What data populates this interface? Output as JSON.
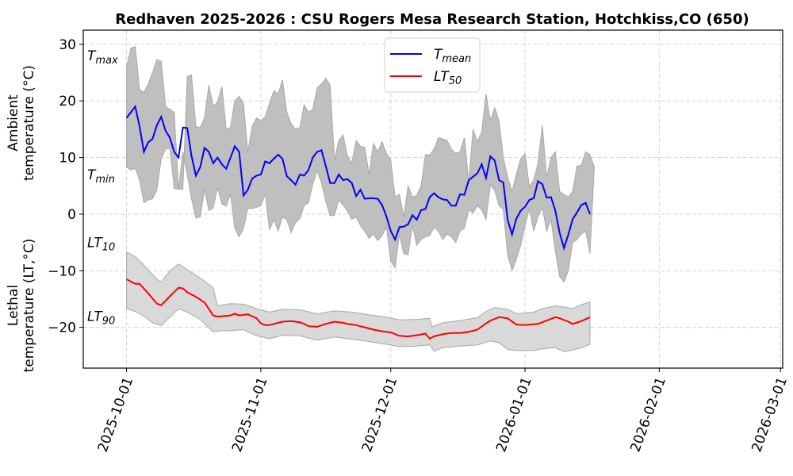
{
  "chart_data": {
    "type": "line",
    "title": "Redhaven 2025-2026 : CSU Rogers Mesa Research Station, Hotchkiss,CO (650)",
    "ylabel_top": [
      "Ambient",
      "temperature (°C)"
    ],
    "ylabel_bottom": [
      "Lethal",
      "temperature (LT,°C)"
    ],
    "xlabel": "",
    "x_unit": "days since 2025-10-01",
    "xlim": [
      -10,
      151.5
    ],
    "ylim": [
      -27.2,
      32.5
    ],
    "grid": true,
    "x_ticks": [
      {
        "day": 0,
        "label": "2025-10-01"
      },
      {
        "day": 31,
        "label": "2025-11-01"
      },
      {
        "day": 61,
        "label": "2025-12-01"
      },
      {
        "day": 92,
        "label": "2026-01-01"
      },
      {
        "day": 123,
        "label": "2026-02-01"
      },
      {
        "day": 151,
        "label": "2026-03-01"
      }
    ],
    "y_ticks": [
      30,
      20,
      10,
      0,
      -10,
      -20
    ],
    "annotations": [
      {
        "label": "T",
        "sub": "max",
        "y": 28
      },
      {
        "label": "T",
        "sub": "min",
        "y": 7
      },
      {
        "label": "LT",
        "sub": "10",
        "y": -5
      },
      {
        "label": "LT",
        "sub": "90",
        "y": -18
      }
    ],
    "legend": {
      "placement": "top-center",
      "entries": [
        {
          "label": "T",
          "sub": "mean",
          "color": "#0000ff"
        },
        {
          "label": "LT",
          "sub": "50",
          "color": "#ff0000"
        }
      ]
    },
    "colors": {
      "tmean": "#0000ff",
      "lt50": "#ff0000",
      "tband": "#bfbfbf",
      "ltband": "#d9d9d9"
    },
    "tmean": [
      17,
      18,
      19,
      15.5,
      11,
      12.7,
      13.3,
      15.7,
      17.2,
      14.7,
      13.5,
      11,
      10,
      15.3,
      15.2,
      10.3,
      6.8,
      8.3,
      11.7,
      11,
      9,
      10,
      8.8,
      8,
      10,
      12,
      11,
      3.3,
      4.3,
      6.3,
      6.8,
      7,
      9.3,
      9,
      9.8,
      10.5,
      9.8,
      6.7,
      6,
      5.2,
      7,
      6.8,
      7.8,
      10,
      11,
      11.3,
      8.5,
      5.5,
      5.5,
      7,
      6,
      6.2,
      5.5,
      3.2,
      4.3,
      2.7,
      2.8,
      2.8,
      2.7,
      1.6,
      -0.4,
      -3,
      -4.5,
      -2.3,
      -2.2,
      -1.8,
      -0.2,
      -1,
      0.7,
      0.9,
      3,
      3.7,
      3,
      2.6,
      2.5,
      1.5,
      1.5,
      3.5,
      3.4,
      6,
      6.6,
      7.2,
      8.8,
      6.4,
      10.2,
      9.5,
      6,
      5.6,
      -1,
      -3.6,
      -0.8,
      0.6,
      1.3,
      2.5,
      2.8,
      5.8,
      5.3,
      2.9,
      3,
      0.6,
      -3.3,
      -6,
      -3.6,
      -0.9,
      0.3,
      1.6,
      2,
      0
    ],
    "tmax": [
      26,
      29.3,
      29.6,
      22,
      21.5,
      23,
      25,
      27.3,
      27,
      19,
      18.5,
      18,
      4.4,
      4.4,
      24.3,
      24.6,
      15.5,
      15.3,
      17,
      22.8,
      19,
      19.8,
      22.5,
      15,
      15.3,
      20,
      20.8,
      19.5,
      11,
      15.5,
      17,
      16.5,
      17.2,
      19.5,
      21.8,
      21.3,
      23.7,
      18,
      16,
      15,
      15.3,
      19.3,
      18,
      18.5,
      22.3,
      23,
      24,
      22.8,
      9.5,
      13,
      14,
      10.3,
      9,
      13,
      12,
      11.8,
      7,
      12.5,
      11,
      12.8,
      10.7,
      9.5,
      3,
      3.5,
      -0.5,
      5,
      3,
      3.3,
      5,
      10.5,
      10.5,
      11.5,
      13.5,
      13.3,
      13,
      11.5,
      10.7,
      11,
      13.5,
      5.5,
      15,
      12.8,
      14.5,
      21.2,
      16.5,
      18.8,
      16.5,
      10,
      6.5,
      4,
      7,
      9.8,
      10.7,
      4.8,
      6,
      9,
      15.7,
      6.5,
      10,
      11,
      4,
      3.5,
      3,
      4,
      8.5,
      8.6,
      11,
      10.5,
      8.3
    ],
    "tmin": [
      8.3,
      7.8,
      8.1,
      6,
      2,
      2.5,
      2.7,
      4.3,
      9.8,
      11.5,
      11.6,
      4.5,
      4.4,
      11,
      7,
      2.7,
      -0.7,
      -0.5,
      4.4,
      0.6,
      1.1,
      4.7,
      1.8,
      1.4,
      3.5,
      -2.5,
      -4,
      -2.5,
      1,
      1,
      1.2,
      1.5,
      3.5,
      -2.7,
      -1,
      -3,
      -0.5,
      -1,
      -3.3,
      -1.5,
      -0.8,
      1.5,
      2,
      5.3,
      7.7,
      5.5,
      2.3,
      -0.3,
      -0.2,
      2.5,
      1.6,
      0.5,
      -0.9,
      -0.5,
      -2,
      -3,
      -4.3,
      -3.5,
      -4.7,
      -3.8,
      -2.3,
      -8.3,
      -9.5,
      -3.5,
      -7,
      -7.2,
      -2,
      -5.5,
      -4.5,
      -4,
      -3.8,
      -2.3,
      -3,
      -4.5,
      -3.5,
      -4,
      -5,
      -3,
      -2.5,
      0.8,
      0.2,
      1.5,
      0.8,
      -1,
      5.2,
      4.2,
      1.5,
      0.8,
      -7.3,
      -10,
      -8,
      -5.5,
      -2,
      1,
      -3,
      -0.5,
      1.2,
      -3,
      -1,
      -6.5,
      -11,
      -12,
      -10,
      -5,
      -4.5,
      -3.5,
      -3,
      -7
    ],
    "lt50": [
      [
        0,
        -11.5
      ],
      [
        2,
        -12.3
      ],
      [
        3,
        -12.3
      ],
      [
        5,
        -14
      ],
      [
        7,
        -15.8
      ],
      [
        8,
        -16.1
      ],
      [
        10,
        -14.5
      ],
      [
        12,
        -13
      ],
      [
        13,
        -13.1
      ],
      [
        14,
        -13.8
      ],
      [
        16,
        -14.6
      ],
      [
        18,
        -15.6
      ],
      [
        20,
        -17.9
      ],
      [
        21,
        -18.1
      ],
      [
        24,
        -17.9
      ],
      [
        25,
        -17.6
      ],
      [
        26,
        -17.9
      ],
      [
        27,
        -17.8
      ],
      [
        28,
        -17.7
      ],
      [
        30,
        -18.4
      ],
      [
        31,
        -19.3
      ],
      [
        32,
        -19.6
      ],
      [
        33,
        -19.6
      ],
      [
        35,
        -19.2
      ],
      [
        36,
        -19
      ],
      [
        38,
        -18.9
      ],
      [
        40,
        -19.1
      ],
      [
        41,
        -19.4
      ],
      [
        42,
        -19.8
      ],
      [
        44,
        -19.9
      ],
      [
        46,
        -19.4
      ],
      [
        48,
        -19
      ],
      [
        50,
        -19.2
      ],
      [
        51,
        -19.4
      ],
      [
        53,
        -19.6
      ],
      [
        55,
        -20
      ],
      [
        57,
        -20.4
      ],
      [
        59,
        -20.7
      ],
      [
        61,
        -20.9
      ],
      [
        63,
        -21.5
      ],
      [
        65,
        -21.6
      ],
      [
        67,
        -21.4
      ],
      [
        69,
        -21.1
      ],
      [
        70,
        -22
      ],
      [
        71,
        -21.6
      ],
      [
        73,
        -21.2
      ],
      [
        75,
        -21
      ],
      [
        77,
        -21
      ],
      [
        79,
        -20.8
      ],
      [
        81,
        -20.4
      ],
      [
        83,
        -19.3
      ],
      [
        84,
        -18.8
      ],
      [
        86,
        -18.2
      ],
      [
        88,
        -18.4
      ],
      [
        90,
        -19.5
      ],
      [
        92,
        -19.6
      ],
      [
        95,
        -19.4
      ],
      [
        97,
        -18.8
      ],
      [
        99,
        -18.2
      ],
      [
        100,
        -18.4
      ],
      [
        102,
        -19
      ],
      [
        103,
        -19.4
      ],
      [
        105,
        -18.9
      ],
      [
        107,
        -18.2
      ]
    ],
    "lt10": [
      [
        0,
        -6.7
      ],
      [
        2,
        -7.5
      ],
      [
        4,
        -9
      ],
      [
        7,
        -11.5
      ],
      [
        8,
        -12
      ],
      [
        10,
        -10
      ],
      [
        12,
        -8.8
      ],
      [
        14,
        -9.8
      ],
      [
        17,
        -11.3
      ],
      [
        20,
        -13
      ],
      [
        21,
        -16.2
      ],
      [
        24,
        -15.8
      ],
      [
        27,
        -15.9
      ],
      [
        30,
        -16.7
      ],
      [
        33,
        -17.3
      ],
      [
        36,
        -16.8
      ],
      [
        40,
        -16.9
      ],
      [
        44,
        -17.6
      ],
      [
        48,
        -17.1
      ],
      [
        52,
        -17.3
      ],
      [
        56,
        -17.8
      ],
      [
        60,
        -18.2
      ],
      [
        63,
        -18.7
      ],
      [
        67,
        -18.6
      ],
      [
        70,
        -18.4
      ],
      [
        70.5,
        -19.9
      ],
      [
        73,
        -19.2
      ],
      [
        77,
        -18.8
      ],
      [
        81,
        -18.3
      ],
      [
        83,
        -17.2
      ],
      [
        85,
        -16.5
      ],
      [
        88,
        -16.8
      ],
      [
        90,
        -17.6
      ],
      [
        94,
        -17.3
      ],
      [
        96,
        -16.7
      ],
      [
        99,
        -16.2
      ],
      [
        101,
        -16.4
      ],
      [
        103,
        -16.7
      ],
      [
        105,
        -16
      ],
      [
        107,
        -15.5
      ]
    ],
    "lt90": [
      [
        0,
        -16.7
      ],
      [
        2,
        -17.2
      ],
      [
        4,
        -18
      ],
      [
        6,
        -19.2
      ],
      [
        8,
        -19.7
      ],
      [
        10,
        -18.2
      ],
      [
        12,
        -16.7
      ],
      [
        14,
        -17.3
      ],
      [
        17,
        -18.6
      ],
      [
        20,
        -20.8
      ],
      [
        22,
        -20.6
      ],
      [
        24,
        -20.6
      ],
      [
        27,
        -20.4
      ],
      [
        30,
        -21.5
      ],
      [
        33,
        -22
      ],
      [
        36,
        -21.4
      ],
      [
        40,
        -21.5
      ],
      [
        44,
        -22.3
      ],
      [
        48,
        -21.7
      ],
      [
        52,
        -22.1
      ],
      [
        56,
        -22.5
      ],
      [
        60,
        -23
      ],
      [
        63,
        -23.4
      ],
      [
        67,
        -23.3
      ],
      [
        70,
        -23.1
      ],
      [
        71,
        -24.2
      ],
      [
        73,
        -23.6
      ],
      [
        77,
        -23.3
      ],
      [
        81,
        -23.1
      ],
      [
        84,
        -22.4
      ],
      [
        86,
        -22.7
      ],
      [
        88,
        -23.9
      ],
      [
        90,
        -24.1
      ],
      [
        94,
        -24.1
      ],
      [
        96,
        -23.8
      ],
      [
        99,
        -23.6
      ],
      [
        101,
        -24.3
      ],
      [
        103,
        -24
      ],
      [
        105,
        -23.6
      ],
      [
        107,
        -23
      ]
    ]
  }
}
